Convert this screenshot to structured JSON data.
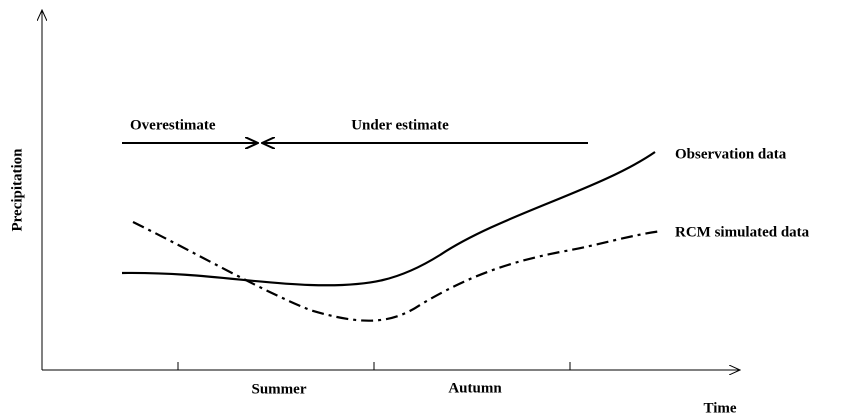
{
  "axes": {
    "x_label": "Time",
    "y_label": "Precipitation",
    "x_categories": [
      "Summer",
      "Autumn"
    ]
  },
  "annotations": {
    "left": "Overestimate",
    "right": "Under estimate"
  },
  "curves": {
    "observed": "Observation data",
    "simulated": "RCM simulated data"
  }
}
